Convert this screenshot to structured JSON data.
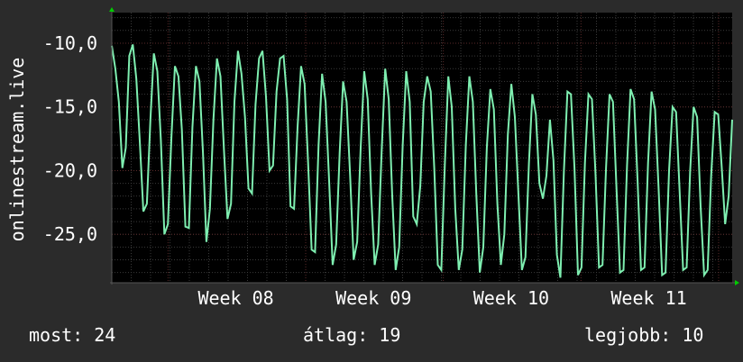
{
  "colors": {
    "background": "#2b2b2b",
    "plot_bg": "#000000",
    "grid_minor": "#3a3a3a",
    "grid_major": "#5a2a2a",
    "line": "#7eeeb0",
    "axis_arrow": "#00cc00",
    "text": "#ffffff"
  },
  "chart_data": {
    "type": "line",
    "ylabel": "onlinestream.live",
    "ylim": [
      -28.8,
      -7.6
    ],
    "xlim": [
      0,
      32
    ],
    "yticks": [
      -10,
      -15,
      -20,
      -25
    ],
    "ytick_labels": [
      "-10,0",
      "-15,0",
      "-20,0",
      "-25,0"
    ],
    "xticks": [
      {
        "pos": 6.4,
        "label": "Week 08"
      },
      {
        "pos": 13.5,
        "label": "Week 09"
      },
      {
        "pos": 20.6,
        "label": "Week 10"
      },
      {
        "pos": 27.7,
        "label": "Week 11"
      }
    ],
    "grid": true,
    "series": [
      {
        "values": [
          -10.2,
          -12.0,
          -14.6,
          -19.8,
          -18.2,
          -11.0,
          -10.1,
          -12.8,
          -17.8,
          -23.2,
          -22.6,
          -16.0,
          -10.8,
          -12.2,
          -17.6,
          -25.0,
          -24.2,
          -17.4,
          -11.8,
          -12.6,
          -16.8,
          -24.4,
          -24.5,
          -16.6,
          -11.8,
          -13.0,
          -18.6,
          -25.6,
          -23.0,
          -16.0,
          -11.2,
          -12.6,
          -18.4,
          -23.8,
          -22.6,
          -14.6,
          -10.6,
          -12.4,
          -15.8,
          -21.4,
          -21.8,
          -14.8,
          -11.2,
          -10.6,
          -14.2,
          -20.0,
          -19.6,
          -13.8,
          -11.2,
          -11.0,
          -14.4,
          -22.8,
          -23.0,
          -16.6,
          -11.8,
          -13.2,
          -19.4,
          -26.2,
          -26.4,
          -18.0,
          -12.4,
          -14.6,
          -20.8,
          -27.4,
          -25.8,
          -18.6,
          -13.0,
          -14.6,
          -20.4,
          -27.0,
          -25.6,
          -18.2,
          -12.2,
          -14.4,
          -21.8,
          -27.4,
          -25.8,
          -18.4,
          -12.0,
          -14.4,
          -22.0,
          -27.8,
          -26.0,
          -18.0,
          -12.2,
          -14.6,
          -23.6,
          -24.2,
          -21.2,
          -14.6,
          -12.6,
          -13.8,
          -19.8,
          -27.4,
          -27.8,
          -19.6,
          -12.6,
          -15.0,
          -23.0,
          -27.8,
          -26.2,
          -18.0,
          -12.6,
          -14.6,
          -21.8,
          -28.0,
          -26.0,
          -18.2,
          -13.6,
          -15.2,
          -22.6,
          -27.4,
          -25.0,
          -17.2,
          -13.2,
          -15.8,
          -21.8,
          -27.8,
          -26.8,
          -19.4,
          -14.0,
          -15.6,
          -21.0,
          -22.2,
          -20.4,
          -16.0,
          -19.2,
          -26.6,
          -28.4,
          -20.0,
          -13.8,
          -14.0,
          -19.8,
          -28.2,
          -27.6,
          -19.4,
          -14.0,
          -14.4,
          -20.2,
          -27.6,
          -27.4,
          -19.8,
          -14.0,
          -14.6,
          -21.4,
          -28.0,
          -27.8,
          -19.6,
          -13.6,
          -14.4,
          -20.8,
          -27.8,
          -27.6,
          -19.4,
          -13.8,
          -15.2,
          -21.4,
          -28.2,
          -28.0,
          -20.0,
          -15.0,
          -15.4,
          -21.6,
          -27.8,
          -27.6,
          -20.0,
          -15.0,
          -15.8,
          -22.8,
          -28.2,
          -27.8,
          -20.4,
          -15.4,
          -15.6,
          -19.6,
          -24.2,
          -22.0,
          -16.0
        ]
      }
    ]
  },
  "footer": {
    "current": "most: 24",
    "average": "átlag: 19",
    "best": "legjobb: 10"
  }
}
